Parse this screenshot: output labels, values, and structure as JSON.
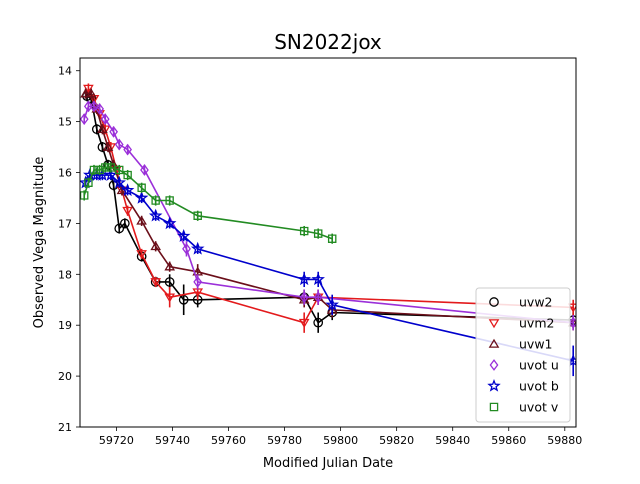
{
  "chart_data": {
    "type": "scatter",
    "title": "SN2022jox",
    "xlabel": "Modified Julian Date",
    "ylabel": "Observed Vega Magnitude",
    "xlim": [
      59707,
      59884
    ],
    "ylim": [
      21,
      13.75
    ],
    "y_inverted": true,
    "x_ticks": [
      59720,
      59740,
      59760,
      59780,
      59800,
      59820,
      59840,
      59860,
      59880
    ],
    "y_ticks": [
      14,
      15,
      16,
      17,
      18,
      19,
      20,
      21
    ],
    "grid": false,
    "legend_position": "lower-right",
    "series": [
      {
        "name": "uvw2",
        "color": "#000000",
        "marker": "circle",
        "x": [
          59709.5,
          59711,
          59713,
          59715,
          59717,
          59719,
          59721,
          59723,
          59729,
          59734,
          59739,
          59744,
          59749,
          59787,
          59792,
          59797,
          59883
        ],
        "y": [
          14.5,
          14.55,
          15.15,
          15.5,
          15.85,
          16.25,
          17.1,
          17.0,
          17.65,
          18.15,
          18.15,
          18.5,
          18.5,
          18.45,
          18.95,
          18.75,
          18.9
        ],
        "err": [
          0.1,
          0.1,
          0.1,
          0.1,
          0.1,
          0.1,
          0.1,
          0.1,
          0.1,
          0.1,
          0.15,
          0.3,
          0.15,
          0.15,
          0.2,
          0.15,
          0.15
        ]
      },
      {
        "name": "uvm2",
        "color": "#e31a1c",
        "marker": "triangle-down",
        "x": [
          59710,
          59712,
          59714,
          59716,
          59718,
          59720,
          59722,
          59724,
          59729,
          59734,
          59739,
          59749,
          59787,
          59792,
          59883
        ],
        "y": [
          14.35,
          14.55,
          14.85,
          15.15,
          15.5,
          15.95,
          16.35,
          16.75,
          17.6,
          18.15,
          18.45,
          18.35,
          18.95,
          18.45,
          18.65
        ],
        "err": [
          0.1,
          0.1,
          0.1,
          0.1,
          0.1,
          0.1,
          0.1,
          0.1,
          0.1,
          0.1,
          0.2,
          0.15,
          0.2,
          0.15,
          0.15
        ]
      },
      {
        "name": "uvw1",
        "color": "#6b0f1a",
        "marker": "triangle-up",
        "x": [
          59709,
          59711,
          59713,
          59715,
          59717,
          59719,
          59722,
          59729,
          59734,
          59739,
          59749,
          59787,
          59792,
          59797,
          59883
        ],
        "y": [
          14.45,
          14.45,
          14.75,
          15.15,
          15.5,
          15.85,
          16.35,
          16.95,
          17.45,
          17.85,
          17.95,
          18.5,
          18.45,
          18.7,
          18.95
        ],
        "err": [
          0.1,
          0.1,
          0.1,
          0.1,
          0.1,
          0.1,
          0.1,
          0.1,
          0.1,
          0.1,
          0.15,
          0.15,
          0.15,
          0.15,
          0.15
        ]
      },
      {
        "name": "uvot u",
        "color": "#9b30d9",
        "marker": "diamond",
        "x": [
          59708.5,
          59710,
          59712,
          59714,
          59716,
          59719,
          59721,
          59724,
          59730,
          59745,
          59749,
          59787,
          59792,
          59883
        ],
        "y": [
          14.95,
          14.7,
          14.7,
          14.75,
          14.95,
          15.2,
          15.45,
          15.55,
          15.95,
          17.5,
          18.15,
          18.45,
          18.45,
          18.95
        ],
        "err": [
          0.1,
          0.1,
          0.1,
          0.1,
          0.1,
          0.1,
          0.1,
          0.1,
          0.1,
          0.15,
          0.15,
          0.15,
          0.15,
          0.15
        ]
      },
      {
        "name": "uvot b",
        "color": "#0000cc",
        "marker": "star",
        "x": [
          59709,
          59710.5,
          59713,
          59715,
          59718,
          59721,
          59724,
          59729,
          59734,
          59739,
          59744,
          59749,
          59787,
          59792,
          59797,
          59883
        ],
        "y": [
          16.2,
          16.05,
          16.05,
          16.05,
          16.05,
          16.2,
          16.35,
          16.5,
          16.85,
          17.0,
          17.25,
          17.5,
          18.1,
          18.1,
          18.6,
          19.7
        ],
        "err": [
          0.1,
          0.1,
          0.1,
          0.1,
          0.1,
          0.1,
          0.1,
          0.1,
          0.1,
          0.1,
          0.1,
          0.1,
          0.15,
          0.15,
          0.2,
          0.3
        ]
      },
      {
        "name": "uvot v",
        "color": "#228b22",
        "marker": "square",
        "x": [
          59708.5,
          59710,
          59712,
          59714,
          59716,
          59718,
          59721,
          59724,
          59729,
          59734,
          59739,
          59749,
          59787,
          59792,
          59797
        ],
        "y": [
          16.45,
          16.2,
          15.95,
          15.95,
          15.9,
          15.9,
          15.95,
          16.05,
          16.3,
          16.55,
          16.55,
          16.85,
          17.15,
          17.2,
          17.3
        ],
        "err": [
          0.1,
          0.1,
          0.1,
          0.1,
          0.1,
          0.1,
          0.1,
          0.1,
          0.1,
          0.1,
          0.1,
          0.1,
          0.1,
          0.1,
          0.1
        ]
      }
    ]
  }
}
